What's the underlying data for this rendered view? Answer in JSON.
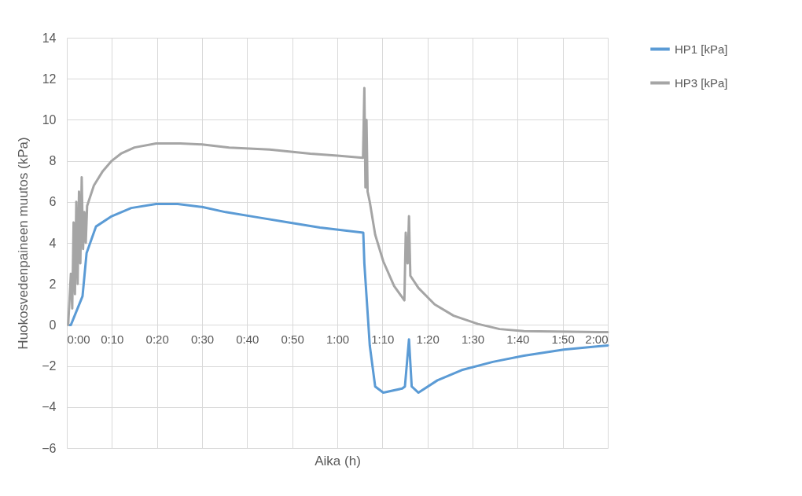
{
  "chart_data": {
    "type": "line",
    "xlabel": "Aika (h)",
    "ylabel": "Huokosvedenpaineen muutos (kPa)",
    "xlim": [
      0,
      2
    ],
    "ylim": [
      -6,
      14
    ],
    "yticks": [
      -6,
      -4,
      -2,
      0,
      2,
      4,
      6,
      8,
      10,
      12,
      14
    ],
    "xticks": [
      {
        "value": 0,
        "label": "0:00"
      },
      {
        "value": 0.16667,
        "label": "0:10"
      },
      {
        "value": 0.33333,
        "label": "0:20"
      },
      {
        "value": 0.5,
        "label": "0:30"
      },
      {
        "value": 0.66667,
        "label": "0:40"
      },
      {
        "value": 0.83333,
        "label": "0:50"
      },
      {
        "value": 1,
        "label": "1:00"
      },
      {
        "value": 1.16667,
        "label": "1:10"
      },
      {
        "value": 1.33333,
        "label": "1:20"
      },
      {
        "value": 1.5,
        "label": "1:30"
      },
      {
        "value": 1.66667,
        "label": "1:40"
      },
      {
        "value": 1.83333,
        "label": "1:50"
      },
      {
        "value": 2,
        "label": "2:00"
      }
    ],
    "grid": true,
    "legend": "right",
    "marker": "none",
    "line_style": "solid",
    "series": [
      {
        "name": "HP1 [kPa]",
        "color": "#5b9bd5",
        "x": [
          0.01,
          0.015,
          0.058,
          0.073,
          0.108,
          0.166,
          0.238,
          0.33,
          0.41,
          0.5,
          0.587,
          0.703,
          0.82,
          0.936,
          1.096,
          1.1,
          1.12,
          1.14,
          1.17,
          1.24,
          1.25,
          1.265,
          1.275,
          1.3,
          1.37,
          1.46,
          1.575,
          1.69,
          1.837,
          2.0
        ],
        "values": [
          0,
          0,
          1.4,
          3.5,
          4.8,
          5.3,
          5.7,
          5.9,
          5.9,
          5.75,
          5.5,
          5.25,
          5.0,
          4.75,
          4.5,
          3.0,
          -1.0,
          -3.0,
          -3.3,
          -3.1,
          -3.0,
          -0.7,
          -3.0,
          -3.3,
          -2.7,
          -2.2,
          -1.8,
          -1.5,
          -1.2,
          -1.0
        ]
      },
      {
        "name": "HP3 [kPa]",
        "color": "#a5a5a5",
        "x": [
          0.005,
          0.015,
          0.02,
          0.025,
          0.03,
          0.035,
          0.04,
          0.045,
          0.05,
          0.055,
          0.06,
          0.065,
          0.07,
          0.075,
          0.1,
          0.133,
          0.166,
          0.2,
          0.25,
          0.33,
          0.42,
          0.5,
          0.6,
          0.75,
          0.9,
          1.0,
          1.095,
          1.1,
          1.104,
          1.108,
          1.112,
          1.12,
          1.14,
          1.17,
          1.21,
          1.248,
          1.253,
          1.26,
          1.265,
          1.27,
          1.3,
          1.36,
          1.43,
          1.52,
          1.6,
          1.69,
          2.0
        ],
        "values": [
          0,
          2.5,
          0.8,
          5,
          1.5,
          6,
          2,
          6.5,
          3,
          7.2,
          3.7,
          5.5,
          4,
          5.8,
          6.8,
          7.5,
          8.0,
          8.35,
          8.65,
          8.85,
          8.85,
          8.8,
          8.65,
          8.55,
          8.35,
          8.25,
          8.15,
          11.55,
          6.7,
          10,
          6.5,
          6.0,
          4.4,
          3.1,
          1.9,
          1.2,
          4.5,
          3,
          5.3,
          2.4,
          1.8,
          1.0,
          0.45,
          0.05,
          -0.2,
          -0.3,
          -0.35
        ]
      }
    ]
  }
}
